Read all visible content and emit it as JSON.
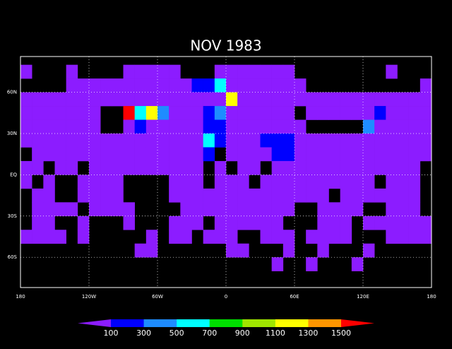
{
  "chart_data": {
    "type": "grid-map",
    "title": "NOV 1983",
    "xlim": [
      -180,
      180
    ],
    "ylim": [
      -82,
      86
    ],
    "xticks": [
      {
        "value": -180,
        "label": "180"
      },
      {
        "value": -120,
        "label": "120W"
      },
      {
        "value": -60,
        "label": "60W"
      },
      0,
      {
        "value": 60,
        "label": "60E"
      },
      {
        "value": 120,
        "label": "120E"
      },
      {
        "value": 180,
        "label": "180"
      }
    ],
    "yticks": [
      {
        "value": 60,
        "label": "60N"
      },
      {
        "value": 30,
        "label": "30N"
      },
      {
        "value": 0,
        "label": "EQ"
      },
      {
        "value": -30,
        "label": "30S"
      },
      {
        "value": -60,
        "label": "60S"
      }
    ],
    "grid": true,
    "colorbar": {
      "levels": [
        100,
        300,
        500,
        700,
        900,
        1100,
        1300,
        1500
      ],
      "colors": [
        "#8c1cff",
        "#0000ff",
        "#1e8cff",
        "#00ffff",
        "#00e000",
        "#a0e600",
        "#ffff00",
        "#ff9600",
        "#ff0000"
      ]
    },
    "values": [
      [
        50,
        null,
        null,
        null,
        50,
        null,
        null,
        null,
        null,
        50,
        50,
        50,
        50,
        50,
        null,
        null,
        null,
        50,
        50,
        50,
        50,
        50,
        50,
        50,
        null,
        null,
        null,
        null,
        null,
        null,
        null,
        null,
        50,
        null,
        null,
        null
      ],
      [
        null,
        null,
        null,
        null,
        50,
        50,
        50,
        50,
        50,
        50,
        50,
        50,
        50,
        50,
        50,
        200,
        200,
        600,
        50,
        50,
        50,
        50,
        50,
        50,
        50,
        null,
        null,
        null,
        null,
        null,
        null,
        null,
        null,
        null,
        null,
        50
      ],
      [
        50,
        50,
        50,
        50,
        50,
        50,
        50,
        50,
        50,
        50,
        50,
        50,
        50,
        50,
        50,
        50,
        50,
        50,
        1200,
        50,
        50,
        50,
        50,
        50,
        50,
        50,
        50,
        50,
        50,
        50,
        50,
        50,
        50,
        50,
        50,
        50
      ],
      [
        50,
        50,
        50,
        50,
        50,
        50,
        50,
        null,
        null,
        1600,
        600,
        1200,
        400,
        50,
        50,
        50,
        200,
        400,
        50,
        50,
        50,
        50,
        50,
        50,
        null,
        50,
        50,
        50,
        50,
        50,
        50,
        200,
        50,
        50,
        50,
        50
      ],
      [
        50,
        50,
        50,
        50,
        50,
        50,
        50,
        null,
        null,
        50,
        200,
        50,
        50,
        50,
        50,
        50,
        200,
        200,
        50,
        50,
        50,
        50,
        50,
        50,
        50,
        null,
        null,
        null,
        null,
        null,
        400,
        50,
        50,
        50,
        50,
        50
      ],
      [
        50,
        50,
        50,
        50,
        50,
        50,
        50,
        50,
        50,
        50,
        50,
        50,
        50,
        50,
        50,
        50,
        600,
        200,
        50,
        50,
        50,
        200,
        200,
        200,
        50,
        50,
        50,
        50,
        50,
        50,
        50,
        50,
        50,
        50,
        50,
        50
      ],
      [
        null,
        50,
        50,
        50,
        50,
        50,
        50,
        50,
        50,
        50,
        50,
        50,
        50,
        50,
        50,
        50,
        200,
        null,
        50,
        50,
        50,
        50,
        200,
        200,
        50,
        50,
        50,
        50,
        50,
        50,
        50,
        50,
        50,
        50,
        50,
        50
      ],
      [
        50,
        50,
        null,
        50,
        50,
        null,
        50,
        50,
        50,
        50,
        50,
        50,
        50,
        50,
        50,
        50,
        null,
        50,
        null,
        50,
        50,
        null,
        50,
        50,
        50,
        50,
        50,
        50,
        50,
        50,
        50,
        50,
        50,
        50,
        50,
        null
      ],
      [
        50,
        null,
        50,
        null,
        null,
        50,
        50,
        50,
        50,
        null,
        null,
        null,
        null,
        50,
        50,
        50,
        null,
        50,
        50,
        50,
        null,
        50,
        50,
        50,
        50,
        50,
        50,
        50,
        50,
        50,
        50,
        null,
        50,
        50,
        50,
        null
      ],
      [
        null,
        50,
        50,
        null,
        null,
        50,
        50,
        50,
        50,
        null,
        null,
        null,
        null,
        50,
        50,
        50,
        50,
        50,
        50,
        50,
        50,
        50,
        50,
        50,
        50,
        50,
        50,
        null,
        50,
        50,
        50,
        50,
        50,
        50,
        50,
        null
      ],
      [
        null,
        50,
        50,
        50,
        50,
        null,
        50,
        50,
        50,
        50,
        null,
        null,
        null,
        null,
        50,
        50,
        50,
        50,
        50,
        50,
        50,
        50,
        50,
        50,
        null,
        null,
        50,
        50,
        50,
        50,
        null,
        null,
        50,
        50,
        50,
        null
      ],
      [
        null,
        50,
        50,
        null,
        null,
        50,
        null,
        null,
        null,
        50,
        null,
        null,
        null,
        50,
        50,
        50,
        null,
        50,
        50,
        50,
        50,
        50,
        50,
        null,
        null,
        null,
        50,
        50,
        50,
        null,
        50,
        50,
        50,
        50,
        50,
        50
      ],
      [
        50,
        50,
        50,
        50,
        null,
        50,
        null,
        null,
        null,
        null,
        null,
        50,
        null,
        50,
        50,
        null,
        50,
        50,
        50,
        null,
        null,
        50,
        50,
        50,
        null,
        50,
        50,
        50,
        50,
        null,
        null,
        null,
        50,
        50,
        50,
        50
      ],
      [
        null,
        null,
        null,
        null,
        null,
        null,
        null,
        null,
        null,
        null,
        50,
        50,
        null,
        null,
        null,
        null,
        null,
        null,
        50,
        50,
        null,
        null,
        null,
        50,
        null,
        null,
        50,
        null,
        null,
        null,
        50,
        null,
        null,
        null,
        null,
        null
      ],
      [
        null,
        null,
        null,
        null,
        null,
        null,
        null,
        null,
        null,
        null,
        null,
        null,
        null,
        null,
        null,
        null,
        null,
        null,
        null,
        null,
        null,
        null,
        50,
        null,
        null,
        50,
        null,
        null,
        null,
        50,
        null,
        null,
        null,
        null,
        null,
        null
      ],
      [
        null,
        null,
        null,
        null,
        null,
        null,
        null,
        null,
        null,
        null,
        null,
        null,
        null,
        null,
        null,
        null,
        null,
        null,
        null,
        null,
        null,
        null,
        null,
        null,
        null,
        null,
        null,
        null,
        null,
        null,
        null,
        null,
        null,
        null,
        null,
        null
      ]
    ]
  }
}
